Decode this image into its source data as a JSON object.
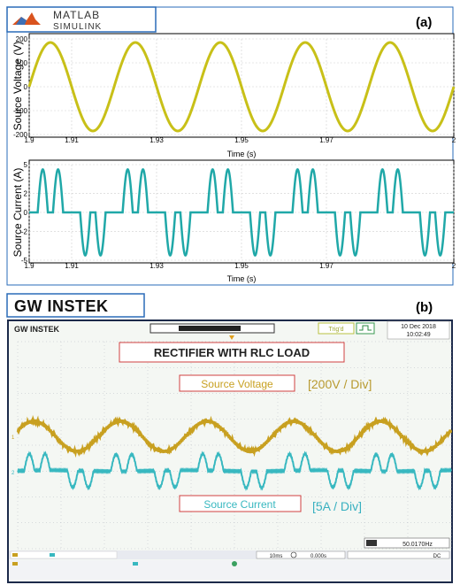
{
  "panel_a": {
    "logo": {
      "line1": "MATLAB",
      "line2": "SIMULINK"
    },
    "label": "(a)"
  },
  "panel_b": {
    "logo": "GW INSTEK",
    "label": "(b)",
    "scope": {
      "brand": "GW INSTEK",
      "trigger_mode": "Trig'd",
      "date": "10 Dec 2018",
      "time": "10:02:49",
      "title": "RECTIFIER WITH RLC LOAD",
      "v_label": "Source Voltage",
      "v_scale": "[200V / Div]",
      "i_label": "Source Current",
      "i_scale": "[5A / Div]",
      "frequency": "50.0170Hz",
      "timebase": "10ms",
      "trigger_pos": "0.000s",
      "trigger_source": "DC",
      "ch1_marker": "1",
      "ch2_marker": "2",
      "colors": {
        "ch1": "#c8a020",
        "ch2": "#38b8c0",
        "screen_bg": "#f4f7f3"
      }
    }
  },
  "chart_data": [
    {
      "type": "line",
      "ylabel": "Source Voltage (V)",
      "xlabel": "Time (s)",
      "xlim": [
        1.9,
        2.0
      ],
      "ylim": [
        -200,
        200
      ],
      "x_ticks": [
        "1.9",
        "1.91",
        "1.93",
        "1.95",
        "1.97",
        "2"
      ],
      "y_ticks": [
        "200",
        "100",
        "0",
        "-100",
        "-200"
      ],
      "grid": true,
      "waveform": "sine",
      "frequency_hz": 50,
      "amplitude": 185,
      "series": [
        {
          "color": "#c8c018",
          "points": [
            [
              1.905,
              185
            ],
            [
              1.915,
              -185
            ],
            [
              1.925,
              185
            ],
            [
              1.935,
              -185
            ],
            [
              1.945,
              185
            ],
            [
              1.955,
              -185
            ],
            [
              1.965,
              185
            ],
            [
              1.975,
              -185
            ],
            [
              1.985,
              185
            ],
            [
              1.995,
              -185
            ]
          ]
        }
      ]
    },
    {
      "type": "line",
      "ylabel": "Source Current (A)",
      "xlabel": "Time (s)",
      "xlim": [
        1.9,
        2.0
      ],
      "ylim": [
        -5,
        5
      ],
      "x_ticks": [
        "1.9",
        "1.91",
        "1.93",
        "1.95",
        "1.97",
        "2"
      ],
      "y_ticks": [
        "5",
        "2",
        "0",
        "-2",
        "-5"
      ],
      "grid": true,
      "waveform": "double-pulse",
      "pulse_peak": 4.5,
      "pulse_centers_positive": [
        1.9032,
        1.9068
      ],
      "pulse_centers_negative": [
        1.9132,
        1.9168
      ],
      "pulse_width_s": 0.0024,
      "series": [
        {
          "color": "#20a8a8"
        }
      ]
    }
  ]
}
